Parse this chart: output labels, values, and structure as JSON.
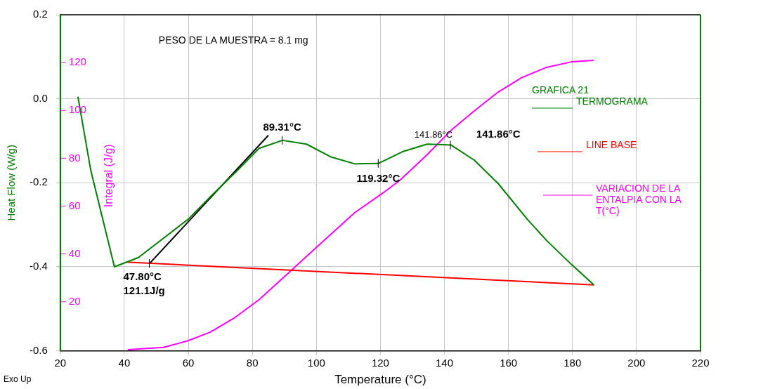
{
  "chart_data": {
    "type": "line",
    "xlabel": "Temperature (°C)",
    "ylabel": "Heat Flow (W/g)",
    "y2label": "Integral (J/g)",
    "xlim": [
      20,
      220
    ],
    "xticks": [
      20,
      40,
      60,
      80,
      100,
      120,
      140,
      160,
      180,
      200,
      220
    ],
    "ylim": [
      -0.6,
      0.2
    ],
    "yticks": [
      -0.6,
      -0.4,
      -0.2,
      {
        "value": 0,
        "label": "0.0"
      },
      0.2
    ],
    "y2lim": [
      -0.5,
      140
    ],
    "y2ticks": [
      20,
      40,
      60,
      80,
      100,
      120
    ],
    "grid": true,
    "legend": "right",
    "marker": "none",
    "line_style": "solid",
    "series": [
      {
        "name": "TERMOGRAMA",
        "color": "#008000",
        "x": [
          25.5,
          29.5,
          36.9,
          44.4,
          59.9,
          67.7,
          75.4,
          82.1,
          89.4,
          96.9,
          104.7,
          112,
          119.3,
          126.9,
          134.6,
          142,
          149.3,
          156.8,
          165.9,
          172,
          179.6,
          186.7
        ],
        "values": [
          0.005,
          -0.17,
          -0.4,
          -0.378,
          -0.287,
          -0.227,
          -0.17,
          -0.118,
          -0.099,
          -0.108,
          -0.139,
          -0.155,
          -0.154,
          -0.126,
          -0.108,
          -0.11,
          -0.146,
          -0.202,
          -0.287,
          -0.338,
          -0.394,
          -0.443
        ]
      },
      {
        "name": "LINE BASE",
        "color": "#ff0000",
        "x": [
          40.6,
          186.7
        ],
        "values": [
          -0.389,
          -0.443
        ]
      },
      {
        "name": "VARIACION DE LA ENTALPIA CON LA T(°C)",
        "color": "#ff00ff",
        "axis": "y2",
        "x": [
          41.1,
          52.2,
          59.9,
          67,
          74.3,
          82.1,
          92.1,
          100.3,
          112,
          120.9,
          126,
          134.6,
          142.4,
          149.3,
          156.8,
          164.1,
          171.9,
          179.6,
          186.6
        ],
        "values": [
          0,
          0.9,
          3.7,
          7.4,
          13.2,
          20.9,
          33.1,
          43.1,
          57.3,
          65.6,
          70.7,
          81.5,
          92.1,
          99.8,
          107.7,
          113.7,
          118,
          120.3,
          120.9
        ]
      },
      {
        "color": "#000000",
        "x": [
          47.9,
          85
        ],
        "values": [
          -0.392,
          -0.087
        ]
      }
    ],
    "annotations": [
      "PESO DE LA MUESTRA = 8.1 mg",
      "GRAFICA 21",
      "Exo Up",
      {
        "text": "89.31°C",
        "x": 89.31,
        "y": -0.099
      },
      {
        "text": "119.32°C",
        "x": 119.32,
        "y": -0.154
      },
      {
        "text": "141.86°C",
        "x": 141.86,
        "y": -0.11
      },
      "141.86°C",
      {
        "text": "47.80°C",
        "x": 47.8,
        "y": -0.392
      },
      {
        "text": "121.1J/g",
        "x": 47.8,
        "y": -0.392
      }
    ]
  }
}
